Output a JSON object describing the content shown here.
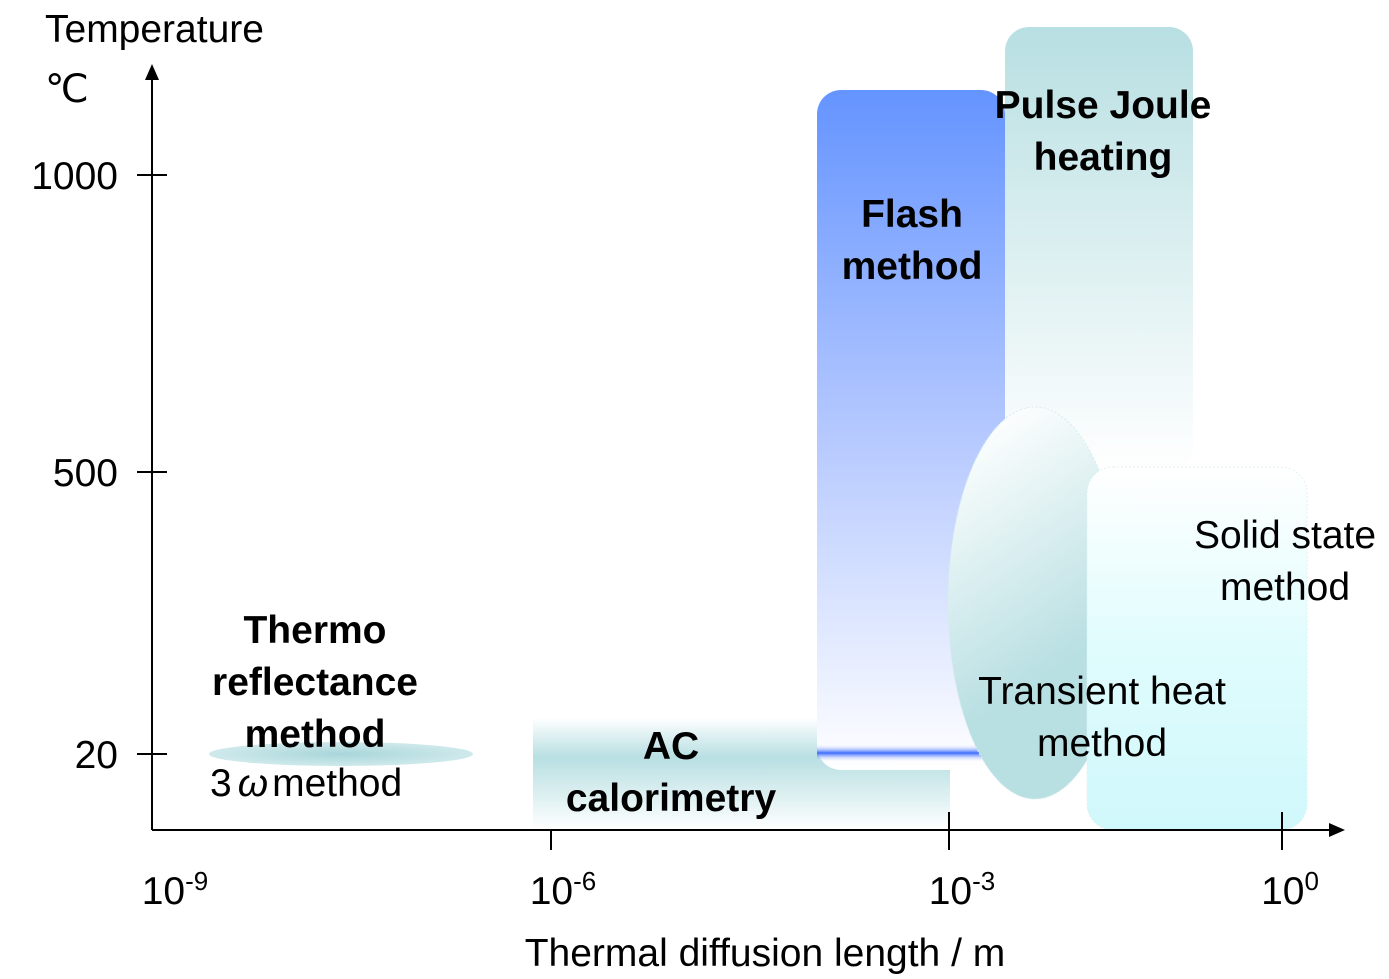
{
  "axes": {
    "y_label": [
      "Temperature",
      "℃"
    ],
    "x_label": "Thermal diffusion length  / m",
    "y_ticks": [
      "1000",
      "500",
      "20"
    ],
    "x_ticks": [
      {
        "base": "10",
        "exp": "-9"
      },
      {
        "base": "10",
        "exp": "-6"
      },
      {
        "base": "10",
        "exp": "-3"
      },
      {
        "base": "10",
        "exp": "0"
      }
    ]
  },
  "regions": [
    {
      "lines": [
        "Thermo",
        "reflectance",
        "method"
      ]
    },
    {
      "lines": [
        "AC",
        "calorimetry"
      ]
    },
    {
      "lines": [
        "Flash",
        "method"
      ]
    },
    {
      "lines": [
        "Pulse Joule",
        "heating"
      ]
    },
    {
      "lines": [
        "Solid state",
        "method"
      ]
    },
    {
      "lines": [
        "Transient heat",
        "method"
      ]
    }
  ],
  "three_omega": {
    "prefix": "3",
    "symbol": "ω",
    "suffix": "method"
  }
}
